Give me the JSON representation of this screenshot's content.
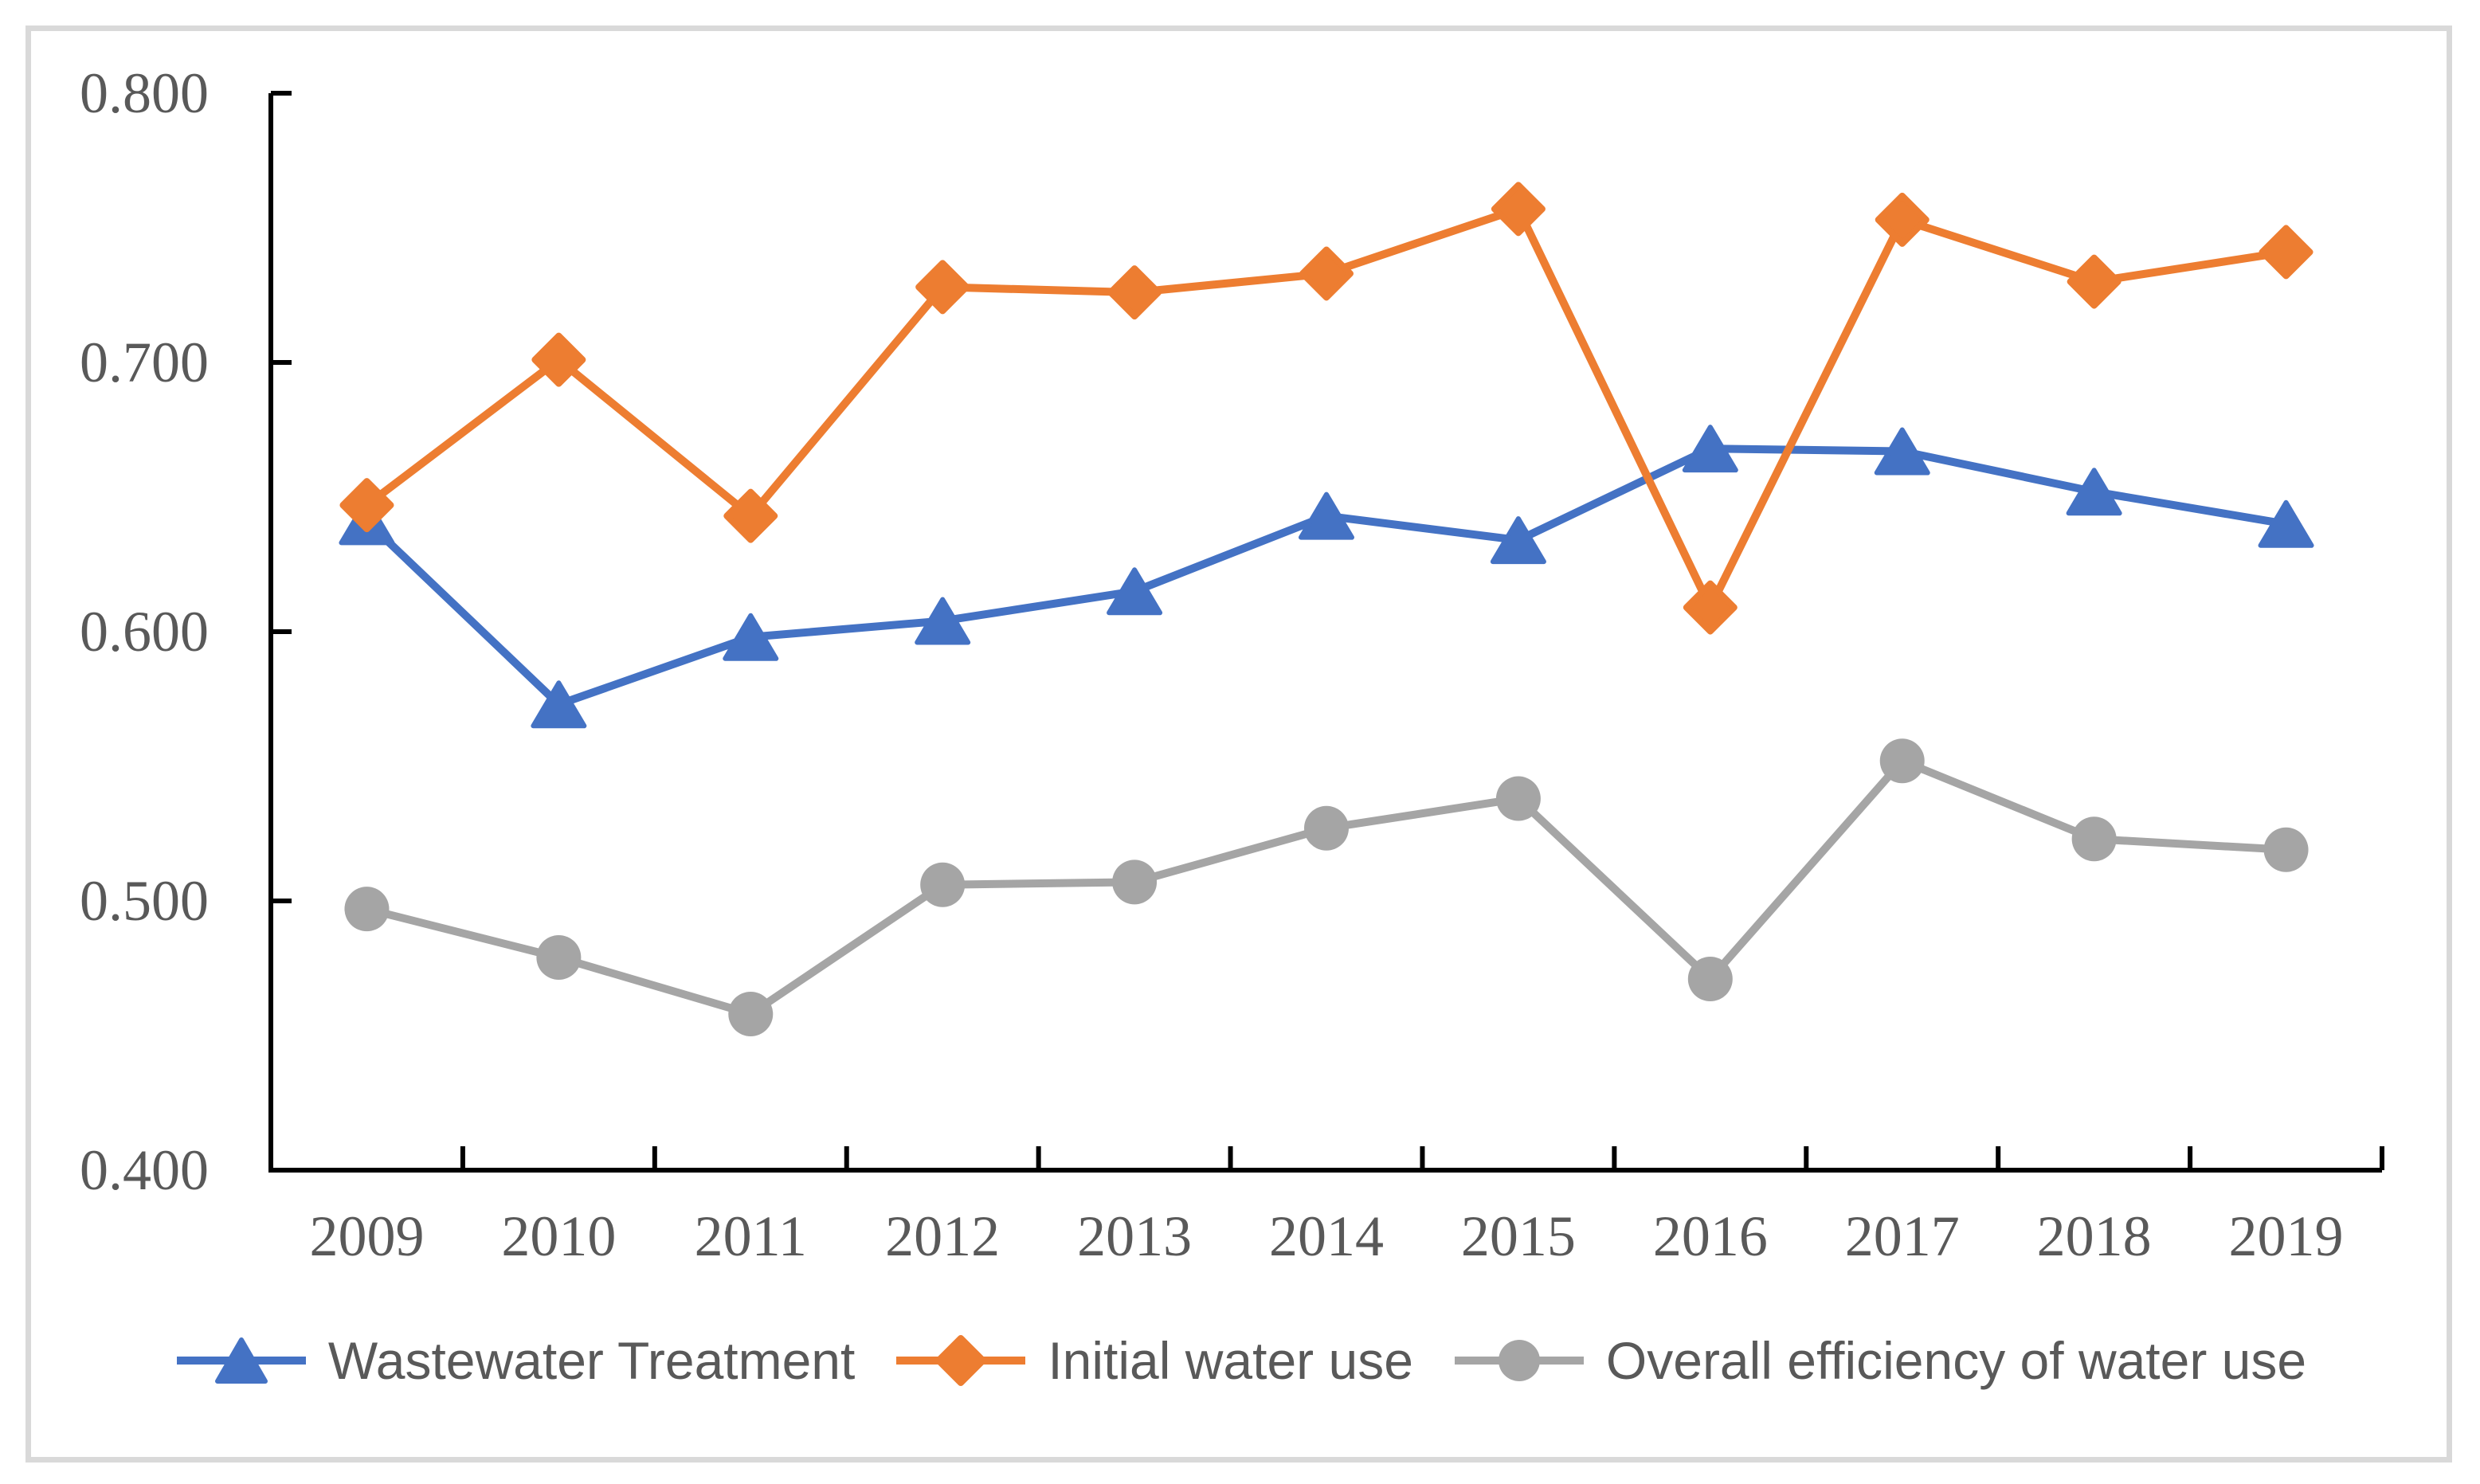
{
  "figure": {
    "background": "#FFFFFF",
    "border_color": "#D9D9D9"
  },
  "chart_data": {
    "type": "line",
    "title": "",
    "xlabel": "",
    "ylabel": "",
    "categories": [
      "2009",
      "2010",
      "2011",
      "2012",
      "2013",
      "2014",
      "2015",
      "2016",
      "2017",
      "2018",
      "2019"
    ],
    "series": [
      {
        "name": "Wastewater Treatment",
        "color": "#4472C4",
        "marker": "triangle",
        "values": [
          0.641,
          0.573,
          0.598,
          0.604,
          0.615,
          0.643,
          0.634,
          0.668,
          0.667,
          0.652,
          0.64
        ]
      },
      {
        "name": "Initial water use",
        "color": "#ED7D31",
        "marker": "diamond",
        "values": [
          0.647,
          0.701,
          0.643,
          0.728,
          0.726,
          0.733,
          0.757,
          0.609,
          0.753,
          0.73,
          0.741
        ]
      },
      {
        "name": "Overall efficiency of water use",
        "color": "#A5A5A5",
        "marker": "circle",
        "values": [
          0.497,
          0.479,
          0.458,
          0.506,
          0.507,
          0.527,
          0.538,
          0.471,
          0.552,
          0.523,
          0.519
        ]
      }
    ],
    "ylim": [
      0.4,
      0.8
    ],
    "y_ticks": [
      {
        "value": 0.8,
        "label": "0.800"
      },
      {
        "value": 0.7,
        "label": "0.700"
      },
      {
        "value": 0.6,
        "label": "0.600"
      },
      {
        "value": 0.5,
        "label": "0.500"
      },
      {
        "value": 0.4,
        "label": "0.400"
      }
    ],
    "grid": false,
    "legend_position": "bottom",
    "axis_color": "#000000",
    "tick_label_color": "#595959",
    "legend_text_color": "#595959"
  }
}
